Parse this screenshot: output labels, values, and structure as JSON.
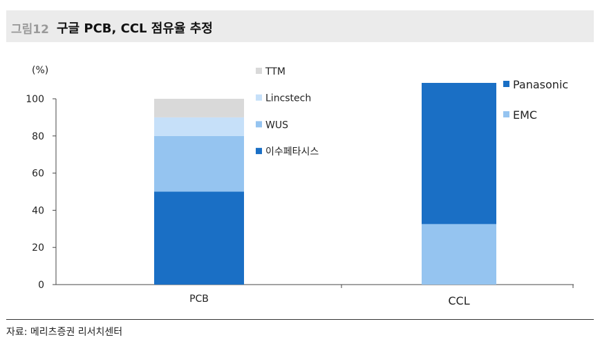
{
  "header": {
    "figure_label": "그림12",
    "title": "구글 PCB, CCL 점유율 추정"
  },
  "source": "자료: 메리츠증권 리서치센터",
  "chart_data": [
    {
      "type": "bar",
      "stacked": true,
      "categories": [
        "PCB"
      ],
      "yunit": "(%)",
      "ylim": [
        0,
        100
      ],
      "yticks": [
        0,
        20,
        40,
        60,
        80,
        100
      ],
      "grid": false,
      "legend_position": "right",
      "series": [
        {
          "name": "이수페타시스",
          "values": [
            50
          ],
          "color": "#1a6fc5"
        },
        {
          "name": "WUS",
          "values": [
            30
          ],
          "color": "#95c4f0"
        },
        {
          "name": "Lincstech",
          "values": [
            10
          ],
          "color": "#c6e0f9"
        },
        {
          "name": "TTM",
          "values": [
            10
          ],
          "color": "#d9d9d9"
        }
      ]
    },
    {
      "type": "bar",
      "stacked": true,
      "categories": [
        "CCL"
      ],
      "ylim": [
        0,
        100
      ],
      "grid": false,
      "legend_position": "right",
      "series": [
        {
          "name": "EMC",
          "values": [
            30
          ],
          "color": "#95c4f0"
        },
        {
          "name": "Panasonic",
          "values": [
            70
          ],
          "color": "#1a6fc5"
        }
      ]
    }
  ]
}
